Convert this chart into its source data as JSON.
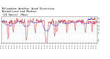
{
  "title_line1": "Milwaukee Weather Wind Direction",
  "title_line2": "Normalized and Median",
  "title_line3": "(24 Hours) (New)",
  "title_fontsize": 2.8,
  "background_color": "#ffffff",
  "grid_color": "#cccccc",
  "ylim": [
    -1.5,
    5.5
  ],
  "yticks": [
    -1,
    1,
    2,
    3,
    4,
    5
  ],
  "ytick_labels": [
    "-1",
    "1",
    "2",
    "3",
    "4",
    "5"
  ],
  "legend_blue": "#0000ff",
  "legend_red": "#cc0000",
  "line_color": "#cc0000",
  "median_color": "#0000cc",
  "num_points": 288,
  "base_value": 4.2,
  "noise_scale": 0.38
}
